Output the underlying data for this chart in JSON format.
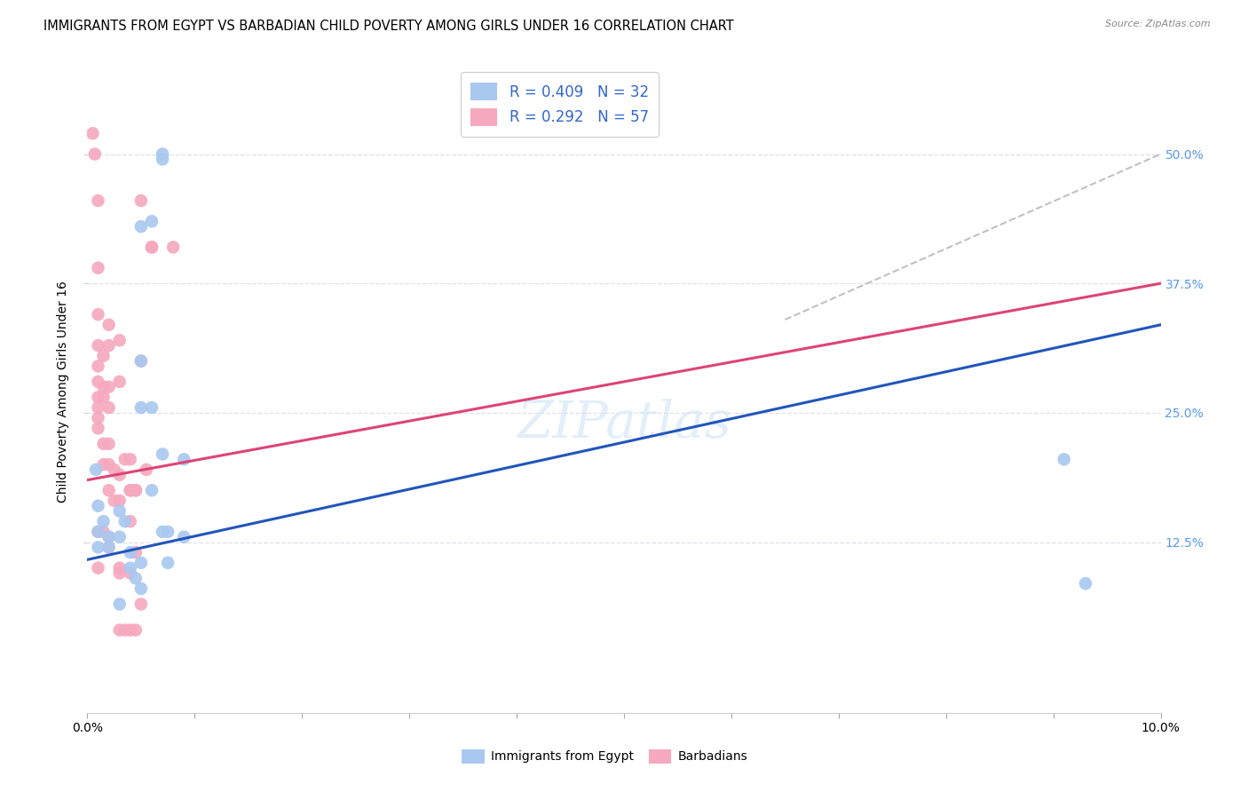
{
  "title": "IMMIGRANTS FROM EGYPT VS BARBADIAN CHILD POVERTY AMONG GIRLS UNDER 16 CORRELATION CHART",
  "source": "Source: ZipAtlas.com",
  "ylabel": "Child Poverty Among Girls Under 16",
  "ytick_labels": [
    "12.5%",
    "25.0%",
    "37.5%",
    "50.0%"
  ],
  "ytick_values": [
    0.125,
    0.25,
    0.375,
    0.5
  ],
  "xlim": [
    0.0,
    0.1
  ],
  "ylim": [
    -0.04,
    0.58
  ],
  "legend_r_blue": "R = 0.409",
  "legend_n_blue": "N = 32",
  "legend_r_pink": "R = 0.292",
  "legend_n_pink": "N = 57",
  "legend_label_blue": "Immigrants from Egypt",
  "legend_label_pink": "Barbadians",
  "blue_scatter_x": [
    0.0008,
    0.001,
    0.001,
    0.001,
    0.0015,
    0.002,
    0.002,
    0.003,
    0.003,
    0.0035,
    0.004,
    0.004,
    0.005,
    0.005,
    0.005,
    0.005,
    0.006,
    0.006,
    0.006,
    0.007,
    0.007,
    0.007,
    0.007,
    0.0075,
    0.0075,
    0.009,
    0.009,
    0.091,
    0.093,
    0.005,
    0.0045,
    0.003
  ],
  "blue_scatter_y": [
    0.195,
    0.16,
    0.135,
    0.12,
    0.145,
    0.13,
    0.12,
    0.155,
    0.13,
    0.145,
    0.115,
    0.1,
    0.3,
    0.255,
    0.105,
    0.08,
    0.435,
    0.255,
    0.175,
    0.5,
    0.495,
    0.21,
    0.135,
    0.135,
    0.105,
    0.205,
    0.13,
    0.205,
    0.085,
    0.43,
    0.09,
    0.065
  ],
  "pink_scatter_x": [
    0.0005,
    0.0007,
    0.001,
    0.001,
    0.001,
    0.001,
    0.001,
    0.001,
    0.001,
    0.001,
    0.001,
    0.001,
    0.0015,
    0.0015,
    0.0015,
    0.0015,
    0.002,
    0.002,
    0.002,
    0.002,
    0.002,
    0.002,
    0.0025,
    0.0025,
    0.003,
    0.003,
    0.003,
    0.003,
    0.0035,
    0.0035,
    0.004,
    0.004,
    0.004,
    0.0045,
    0.0045,
    0.005,
    0.005,
    0.0055,
    0.006,
    0.0015,
    0.002,
    0.002,
    0.003,
    0.003,
    0.004,
    0.004,
    0.0045,
    0.005,
    0.006,
    0.008,
    0.001,
    0.001,
    0.0015,
    0.002,
    0.003,
    0.004,
    0.0045
  ],
  "pink_scatter_y": [
    0.52,
    0.5,
    0.455,
    0.39,
    0.345,
    0.315,
    0.295,
    0.28,
    0.265,
    0.255,
    0.245,
    0.235,
    0.305,
    0.275,
    0.265,
    0.2,
    0.335,
    0.315,
    0.275,
    0.255,
    0.2,
    0.175,
    0.195,
    0.165,
    0.32,
    0.28,
    0.19,
    0.095,
    0.205,
    0.04,
    0.205,
    0.175,
    0.145,
    0.175,
    0.115,
    0.455,
    0.065,
    0.195,
    0.41,
    0.22,
    0.22,
    0.13,
    0.165,
    0.04,
    0.095,
    0.04,
    0.175,
    0.3,
    0.41,
    0.41,
    0.135,
    0.1,
    0.135,
    0.12,
    0.1,
    0.175,
    0.04
  ],
  "blue_line_x0": 0.0,
  "blue_line_y0": 0.108,
  "blue_line_x1": 0.1,
  "blue_line_y1": 0.335,
  "pink_line_x0": 0.0,
  "pink_line_y0": 0.185,
  "pink_line_x1": 0.1,
  "pink_line_y1": 0.375,
  "dashed_line_x0": 0.065,
  "dashed_line_y0": 0.34,
  "dashed_line_x1": 0.1,
  "dashed_line_y1": 0.5,
  "scatter_size": 110,
  "blue_color": "#a8c8f0",
  "pink_color": "#f5a8be",
  "blue_line_color": "#2255bb",
  "pink_line_color": "#dd4477",
  "dashed_color": "#c0c0c8",
  "background_color": "#ffffff",
  "grid_color": "#e0e0e8",
  "title_fontsize": 10.5,
  "axis_label_fontsize": 10,
  "tick_fontsize": 9,
  "right_tick_color": "#5599ee",
  "legend_text_color": "#3366cc"
}
